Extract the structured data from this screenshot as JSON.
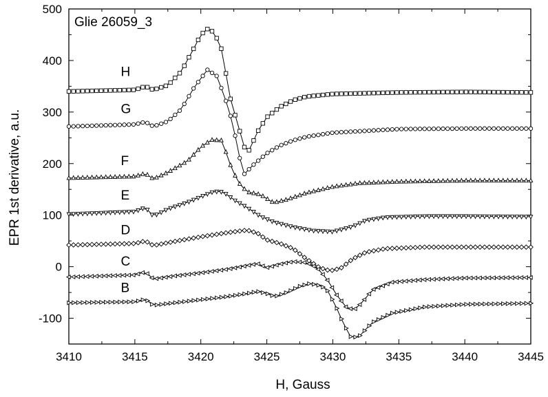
{
  "chart_data": {
    "type": "line",
    "annotation": "Glie 26059_3",
    "xlabel": "H, Gauss",
    "ylabel": "EPR 1st derivative, a.u.",
    "xlim": [
      3410,
      3445
    ],
    "ylim": [
      -150,
      500
    ],
    "x_ticks": [
      3410,
      3415,
      3420,
      3425,
      3430,
      3435,
      3440,
      3445
    ],
    "y_ticks": [
      -100,
      0,
      100,
      200,
      300,
      400,
      500
    ],
    "grid": false,
    "legend": "none",
    "series": [
      {
        "name": "H",
        "marker": "square",
        "label_at": [
          3413,
          370
        ],
        "points": [
          [
            3410,
            340
          ],
          [
            3415,
            343
          ],
          [
            3415.8,
            350
          ],
          [
            3416.4,
            343
          ],
          [
            3417.5,
            352
          ],
          [
            3418.5,
            378
          ],
          [
            3419.5,
            425
          ],
          [
            3420,
            450
          ],
          [
            3420.5,
            461
          ],
          [
            3421,
            455
          ],
          [
            3421.6,
            420
          ],
          [
            3422.2,
            330
          ],
          [
            3422.7,
            285
          ],
          [
            3423.3,
            232
          ],
          [
            3423.7,
            225
          ],
          [
            3424.2,
            258
          ],
          [
            3425,
            290
          ],
          [
            3426,
            310
          ],
          [
            3427,
            323
          ],
          [
            3428,
            330
          ],
          [
            3430,
            335
          ],
          [
            3435,
            338
          ],
          [
            3440,
            339
          ],
          [
            3445,
            338
          ]
        ]
      },
      {
        "name": "G",
        "marker": "circle",
        "label_at": [
          3413,
          298
        ],
        "points": [
          [
            3410,
            272
          ],
          [
            3415,
            276
          ],
          [
            3415.8,
            281
          ],
          [
            3416.4,
            272
          ],
          [
            3417.5,
            282
          ],
          [
            3418.5,
            305
          ],
          [
            3419.5,
            348
          ],
          [
            3420.5,
            382
          ],
          [
            3421.2,
            370
          ],
          [
            3421.8,
            330
          ],
          [
            3422.4,
            280
          ],
          [
            3422.9,
            215
          ],
          [
            3423.3,
            180
          ],
          [
            3424,
            198
          ],
          [
            3425,
            220
          ],
          [
            3426,
            235
          ],
          [
            3427,
            245
          ],
          [
            3428,
            252
          ],
          [
            3430,
            260
          ],
          [
            3435,
            267
          ],
          [
            3440,
            268
          ],
          [
            3445,
            268
          ]
        ]
      },
      {
        "name": "F",
        "marker": "triangle-up",
        "label_at": [
          3413,
          197
        ],
        "points": [
          [
            3410,
            172
          ],
          [
            3415,
            175
          ],
          [
            3415.8,
            181
          ],
          [
            3416.4,
            170
          ],
          [
            3417.5,
            183
          ],
          [
            3419,
            205
          ],
          [
            3420,
            232
          ],
          [
            3420.8,
            246
          ],
          [
            3421.6,
            245
          ],
          [
            3422.2,
            200
          ],
          [
            3422.8,
            165
          ],
          [
            3423.5,
            145
          ],
          [
            3424.5,
            140
          ],
          [
            3425.5,
            124
          ],
          [
            3426.5,
            130
          ],
          [
            3428,
            143
          ],
          [
            3430,
            155
          ],
          [
            3432,
            162
          ],
          [
            3435,
            165
          ],
          [
            3440,
            167
          ],
          [
            3445,
            167
          ]
        ]
      },
      {
        "name": "E",
        "marker": "triangle-down",
        "label_at": [
          3413,
          130
        ],
        "points": [
          [
            3410,
            102
          ],
          [
            3415,
            107
          ],
          [
            3415.8,
            115
          ],
          [
            3416.4,
            98
          ],
          [
            3417.5,
            112
          ],
          [
            3419,
            125
          ],
          [
            3420.2,
            138
          ],
          [
            3421,
            146
          ],
          [
            3421.7,
            145
          ],
          [
            3422.5,
            130
          ],
          [
            3423.5,
            115
          ],
          [
            3424.5,
            98
          ],
          [
            3425.5,
            87
          ],
          [
            3427,
            77
          ],
          [
            3428.5,
            70
          ],
          [
            3430,
            68
          ],
          [
            3431.5,
            78
          ],
          [
            3432.5,
            90
          ],
          [
            3434,
            96
          ],
          [
            3437,
            98
          ],
          [
            3440,
            98
          ],
          [
            3445,
            97
          ]
        ]
      },
      {
        "name": "D",
        "marker": "diamond",
        "label_at": [
          3413,
          63
        ],
        "points": [
          [
            3410,
            42
          ],
          [
            3415,
            45
          ],
          [
            3415.8,
            50
          ],
          [
            3416.4,
            41
          ],
          [
            3418,
            49
          ],
          [
            3420,
            58
          ],
          [
            3422,
            66
          ],
          [
            3423.5,
            71
          ],
          [
            3424.3,
            65
          ],
          [
            3425,
            52
          ],
          [
            3426,
            45
          ],
          [
            3427,
            35
          ],
          [
            3428,
            15
          ],
          [
            3429,
            -2
          ],
          [
            3429.8,
            -8
          ],
          [
            3430.6,
            -3
          ],
          [
            3431.5,
            15
          ],
          [
            3432.5,
            28
          ],
          [
            3434,
            35
          ],
          [
            3437,
            38
          ],
          [
            3440,
            38
          ],
          [
            3445,
            38
          ]
        ]
      },
      {
        "name": "C",
        "marker": "triangle-left",
        "label_at": [
          3413,
          2
        ],
        "points": [
          [
            3410,
            -20
          ],
          [
            3415,
            -16
          ],
          [
            3415.8,
            -10
          ],
          [
            3416.4,
            -24
          ],
          [
            3418,
            -18
          ],
          [
            3420,
            -12
          ],
          [
            3422,
            -5
          ],
          [
            3423.5,
            2
          ],
          [
            3424.3,
            6
          ],
          [
            3425,
            -2
          ],
          [
            3426,
            5
          ],
          [
            3427,
            10
          ],
          [
            3428,
            8
          ],
          [
            3428.8,
            -2
          ],
          [
            3429.5,
            -22
          ],
          [
            3430.3,
            -55
          ],
          [
            3431,
            -78
          ],
          [
            3431.6,
            -84
          ],
          [
            3432.2,
            -70
          ],
          [
            3433,
            -45
          ],
          [
            3434.5,
            -30
          ],
          [
            3437,
            -25
          ],
          [
            3440,
            -22
          ],
          [
            3445,
            -21
          ]
        ]
      },
      {
        "name": "B",
        "marker": "triangle-right",
        "label_at": [
          3413,
          -49
        ],
        "points": [
          [
            3410,
            -70
          ],
          [
            3415,
            -68
          ],
          [
            3415.8,
            -63
          ],
          [
            3416.4,
            -75
          ],
          [
            3418,
            -70
          ],
          [
            3420,
            -64
          ],
          [
            3422,
            -58
          ],
          [
            3423.5,
            -52
          ],
          [
            3424.3,
            -48
          ],
          [
            3425,
            -52
          ],
          [
            3425.6,
            -58
          ],
          [
            3426.5,
            -50
          ],
          [
            3427.5,
            -38
          ],
          [
            3428.2,
            -33
          ],
          [
            3428.8,
            -35
          ],
          [
            3429.5,
            -42
          ],
          [
            3430.2,
            -75
          ],
          [
            3430.8,
            -110
          ],
          [
            3431.4,
            -138
          ],
          [
            3432,
            -135
          ],
          [
            3433,
            -108
          ],
          [
            3434.5,
            -90
          ],
          [
            3437,
            -78
          ],
          [
            3440,
            -73
          ],
          [
            3445,
            -71
          ]
        ]
      }
    ]
  }
}
